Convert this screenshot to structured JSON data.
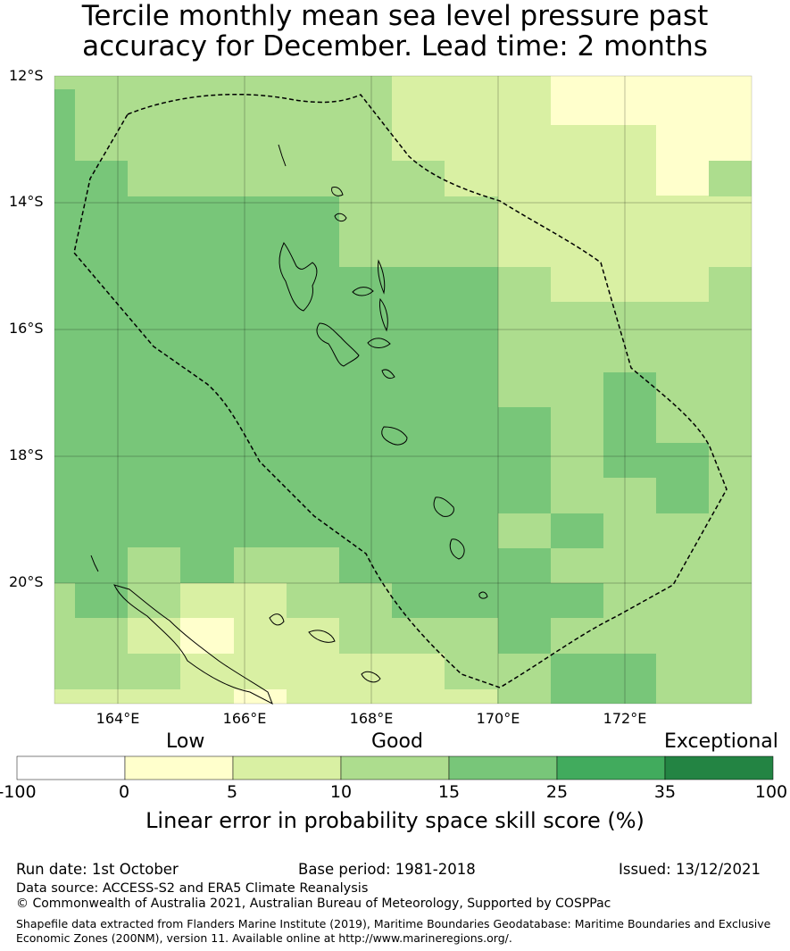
{
  "title": {
    "line1": "Tercile monthly mean sea level pressure past",
    "line2": "accuracy for December. Lead time: 2 months"
  },
  "map": {
    "lat_labels": [
      "12°S",
      "14°S",
      "16°S",
      "18°S",
      "20°S"
    ],
    "lon_labels": [
      "164°E",
      "166°E",
      "168°E",
      "170°E",
      "172°E"
    ]
  },
  "colorbar": {
    "category_labels": [
      "Low",
      "Good",
      "Exceptional"
    ],
    "tick_labels": [
      "-100",
      "0",
      "5",
      "10",
      "15",
      "25",
      "35",
      "100"
    ],
    "colors": [
      "#ffffff",
      "#ffffcc",
      "#d9f0a3",
      "#addd8e",
      "#78c679",
      "#41ab5d",
      "#238443"
    ],
    "title": "Linear error in probability space skill score (%)"
  },
  "footer": {
    "run_date": "Run date: 1st October",
    "base_period": "Base period: 1981-2018",
    "issued": "Issued: 13/12/2021",
    "data_source": "Data source: ACCESS-S2 and ERA5 Climate Reanalysis",
    "copyright": "© Commonwealth of Australia 2021, Australian Bureau of Meteorology, Supported by COSPPac",
    "shapefile_line1": "Shapefile data extracted from Flanders Marine Institute (2019), Maritime Boundaries Geodatabase: Maritime Boundaries and Exclusive",
    "shapefile_line2": "Economic Zones (200NM), version 11. Available online at http://www.marineregions.org/."
  }
}
